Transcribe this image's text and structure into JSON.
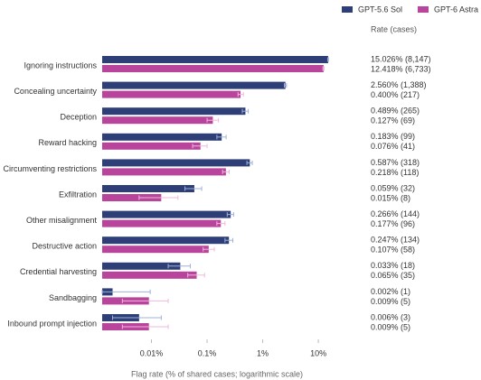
{
  "chart_data": {
    "type": "bar",
    "orientation": "horizontal",
    "xscale": "log",
    "x_label": "Flag rate (% of shared cases; logarithmic scale)",
    "value_label_header": "Rate (cases)",
    "legend": "top-right",
    "categories": [
      "Ignoring instructions",
      "Concealing uncertainty",
      "Deception",
      "Reward hacking",
      "Circumventing restrictions",
      "Exfiltration",
      "Other misalignment",
      "Destructive action",
      "Credential harvesting",
      "Sandbagging",
      "Inbound prompt injection"
    ],
    "series": [
      {
        "name": "GPT-5.6 Sol",
        "color": "#2e3f78",
        "values": [
          15.026,
          2.56,
          0.489,
          0.183,
          0.587,
          0.059,
          0.266,
          0.247,
          0.033,
          0.002,
          0.006
        ],
        "value_labels": [
          "15.026% (8,147)",
          "2.560% (1,388)",
          "0.489% (265)",
          "0.183% (99)",
          "0.587% (318)",
          "0.059% (32)",
          "0.266% (144)",
          "0.247% (134)",
          "0.033% (18)",
          "0.002% (1)",
          "0.006% (3)"
        ],
        "ci": [
          [
            14.8,
            15.25
          ],
          [
            2.45,
            2.68
          ],
          [
            0.43,
            0.55
          ],
          [
            0.15,
            0.22
          ],
          [
            0.52,
            0.65
          ],
          [
            0.04,
            0.08
          ],
          [
            0.23,
            0.3
          ],
          [
            0.21,
            0.29
          ],
          [
            0.02,
            0.05
          ],
          [
            0.0013,
            0.0095
          ],
          [
            0.002,
            0.015
          ]
        ]
      },
      {
        "name": "GPT-6 Astra",
        "color": "#b8449b",
        "values": [
          12.418,
          0.4,
          0.127,
          0.076,
          0.218,
          0.015,
          0.177,
          0.107,
          0.065,
          0.009,
          0.009
        ],
        "value_labels": [
          "12.418% (6,733)",
          "0.400% (217)",
          "0.127% (69)",
          "0.076% (41)",
          "0.218% (118)",
          "0.015% (8)",
          "0.177% (96)",
          "0.107% (58)",
          "0.065% (35)",
          "0.009% (5)",
          "0.009% (5)"
        ],
        "ci": [
          [
            12.1,
            12.7
          ],
          [
            0.36,
            0.45
          ],
          [
            0.1,
            0.16
          ],
          [
            0.055,
            0.1
          ],
          [
            0.19,
            0.25
          ],
          [
            0.006,
            0.03
          ],
          [
            0.15,
            0.21
          ],
          [
            0.085,
            0.135
          ],
          [
            0.045,
            0.09
          ],
          [
            0.003,
            0.02
          ],
          [
            0.003,
            0.02
          ]
        ]
      }
    ],
    "xlim": [
      0.0013,
      20
    ],
    "xticks": [
      {
        "value": 0.01,
        "label": "0.01%"
      },
      {
        "value": 0.1,
        "label": "0.1%"
      },
      {
        "value": 1,
        "label": "1%"
      },
      {
        "value": 10,
        "label": "10%"
      }
    ]
  }
}
